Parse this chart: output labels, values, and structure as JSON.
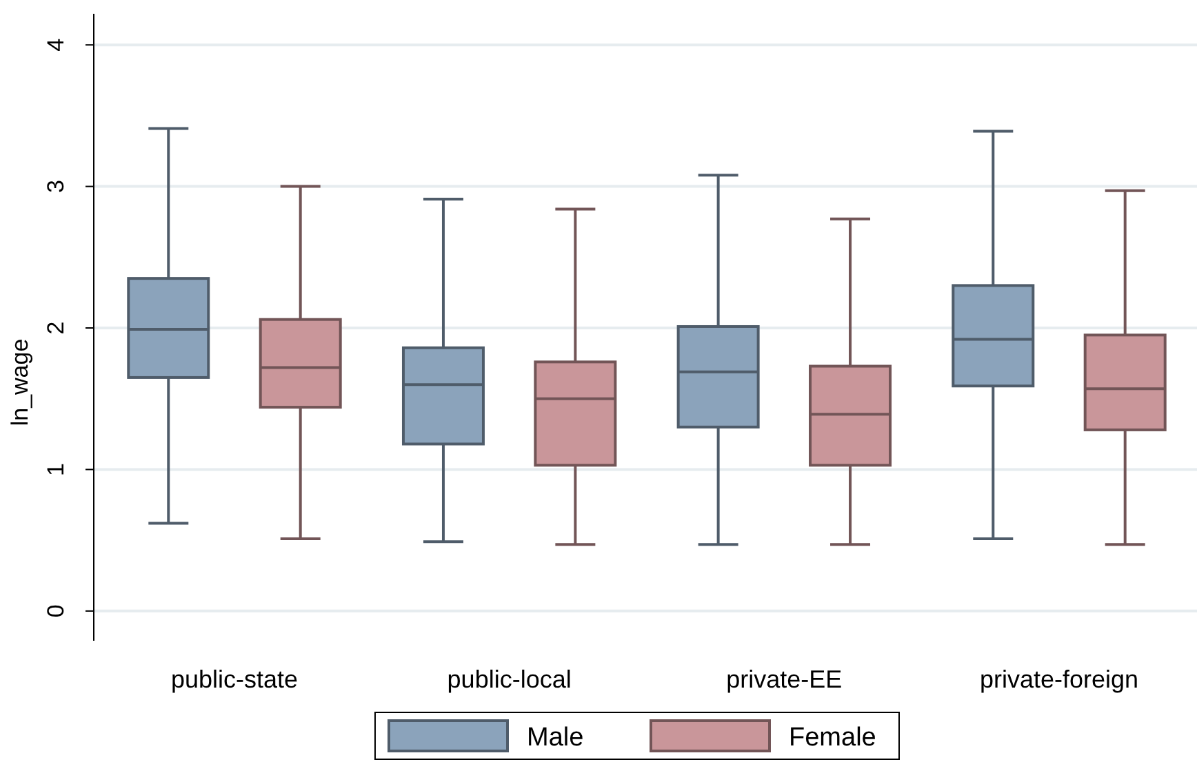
{
  "chart_data": {
    "type": "box",
    "ylabel": "ln_wage",
    "categories": [
      "public-state",
      "public-local",
      "private-EE",
      "private-foreign"
    ],
    "ylim": [
      -0.21,
      4.22
    ],
    "yticks": [
      0,
      1,
      2,
      3,
      4
    ],
    "grid": "y",
    "legend": "bottom",
    "series": [
      {
        "name": "Male",
        "color": "#8ba3bb",
        "boxes": [
          {
            "low": 0.62,
            "q1": 1.65,
            "median": 1.99,
            "q3": 2.35,
            "high": 3.41
          },
          {
            "low": 0.49,
            "q1": 1.18,
            "median": 1.6,
            "q3": 1.86,
            "high": 2.91
          },
          {
            "low": 0.47,
            "q1": 1.3,
            "median": 1.69,
            "q3": 2.01,
            "high": 3.08
          },
          {
            "low": 0.51,
            "q1": 1.59,
            "median": 1.92,
            "q3": 2.3,
            "high": 3.39
          }
        ]
      },
      {
        "name": "Female",
        "color": "#c9969a",
        "boxes": [
          {
            "low": 0.51,
            "q1": 1.44,
            "median": 1.72,
            "q3": 2.06,
            "high": 3.0
          },
          {
            "low": 0.47,
            "q1": 1.03,
            "median": 1.5,
            "q3": 1.76,
            "high": 2.84
          },
          {
            "low": 0.47,
            "q1": 1.03,
            "median": 1.39,
            "q3": 1.73,
            "high": 2.77
          },
          {
            "low": 0.47,
            "q1": 1.28,
            "median": 1.57,
            "q3": 1.95,
            "high": 2.97
          }
        ]
      }
    ]
  }
}
